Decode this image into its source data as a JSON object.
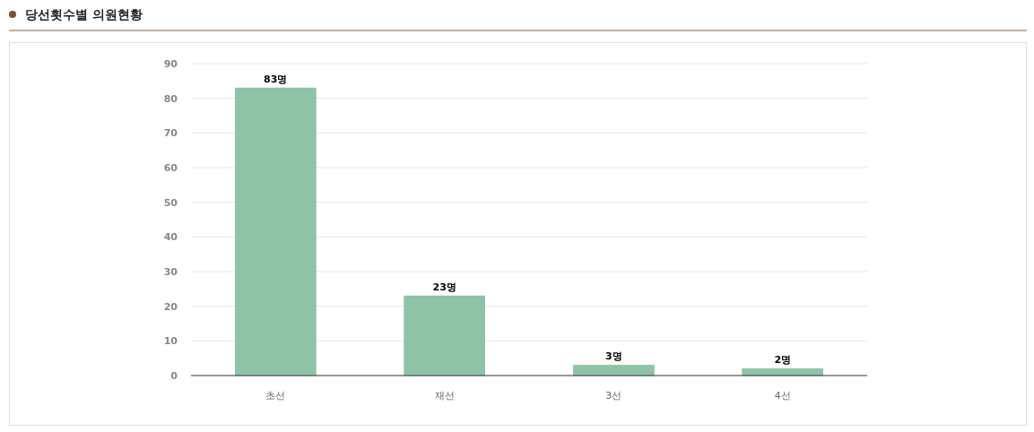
{
  "chart_data": {
    "type": "bar",
    "title": "당선횟수별 의원현황",
    "categories": [
      "초선",
      "재선",
      "3선",
      "4선"
    ],
    "values": [
      83,
      23,
      3,
      2
    ],
    "value_labels": [
      "83명",
      "23명",
      "3명",
      "2명"
    ],
    "color": "#8fc3a7",
    "ylim": [
      0,
      90
    ],
    "yticks": [
      0,
      10,
      20,
      30,
      40,
      50,
      60,
      70,
      80,
      90
    ],
    "grid": "y"
  }
}
